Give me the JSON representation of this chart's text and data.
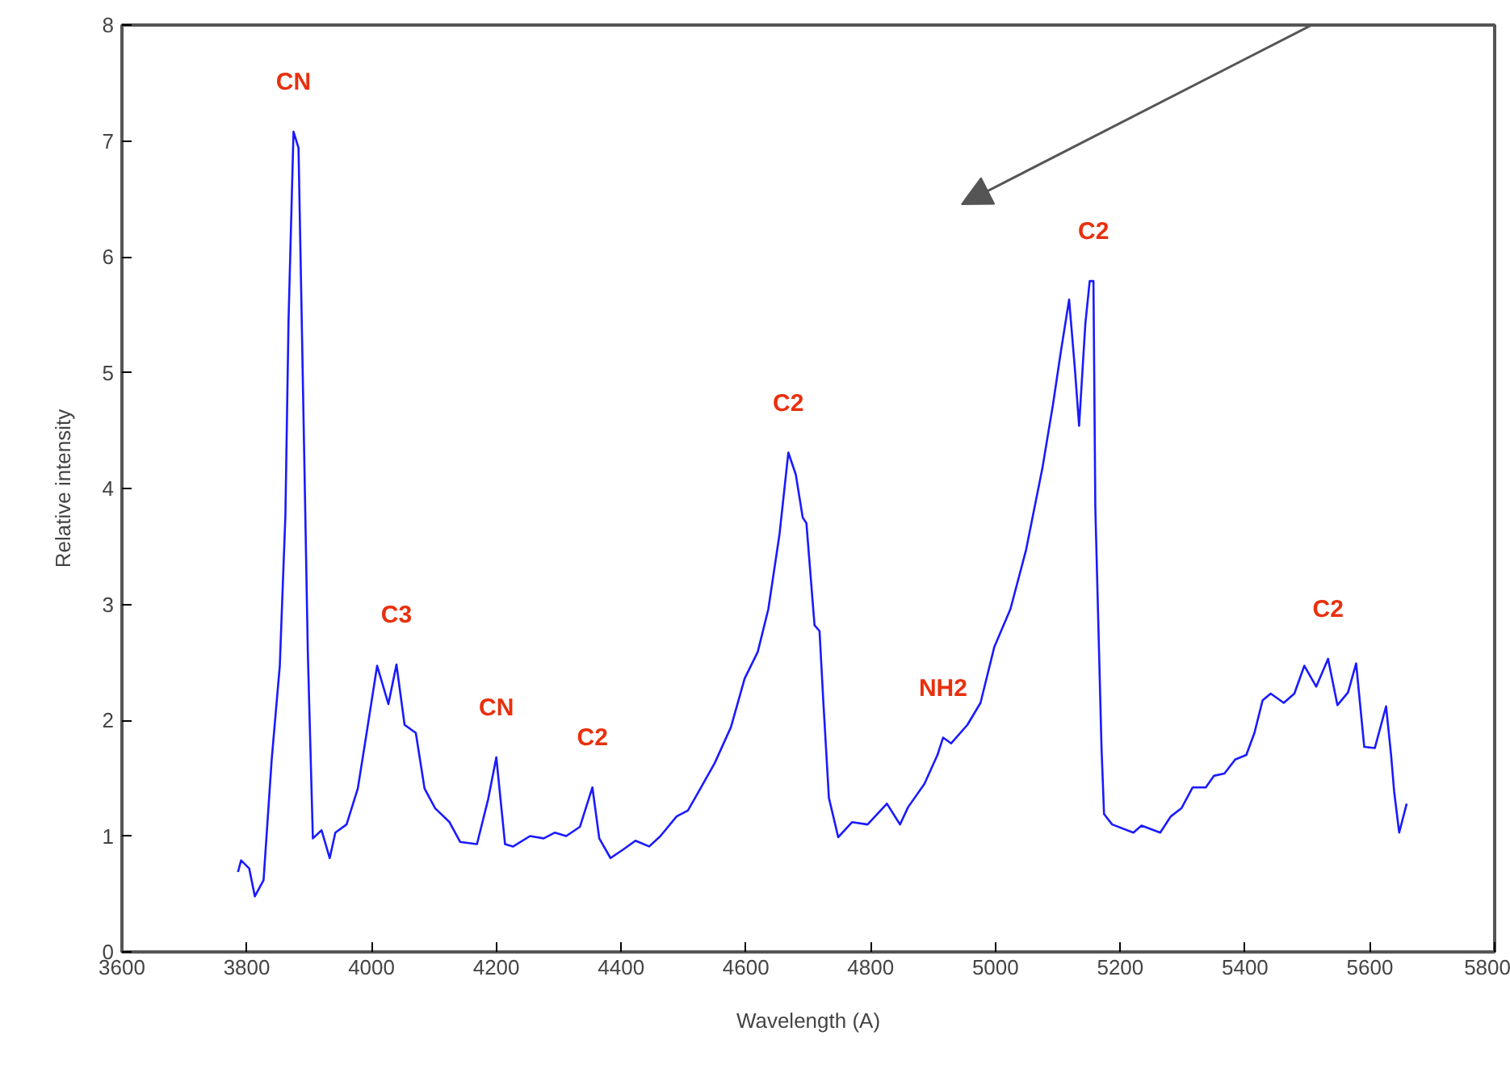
{
  "chart_data": {
    "type": "line",
    "xlabel": "Wavelength (A)",
    "ylabel": "Relative intensity",
    "xlim": [
      3600,
      5800
    ],
    "xticks": [
      3600,
      3800,
      4000,
      4200,
      4400,
      4600,
      4800,
      5000,
      5200,
      5400,
      5600,
      5800
    ],
    "ylim": [
      0,
      8
    ],
    "yticks": [
      0,
      1,
      2,
      3,
      4,
      5,
      6,
      7,
      8
    ],
    "grid": false,
    "marker": "none",
    "line_style": "solid",
    "series": [
      {
        "color": "#1a1aff",
        "x": [
          3786,
          3791,
          3804,
          3813,
          3827,
          3840,
          3853,
          3862,
          3867,
          3875,
          3883,
          3889,
          3898,
          3906,
          3920,
          3933,
          3942,
          3960,
          3978,
          3991,
          4009,
          4027,
          4040,
          4053,
          4071,
          4085,
          4102,
          4125,
          4142,
          4169,
          4187,
          4200,
          4214,
          4227,
          4254,
          4276,
          4294,
          4312,
          4334,
          4354,
          4365,
          4383,
          4405,
          4423,
          4445,
          4463,
          4489,
          4507,
          4524,
          4550,
          4576,
          4598,
          4619,
          4636,
          4654,
          4668,
          4680,
          4691,
          4697,
          4710,
          4718,
          4724,
          4733,
          4748,
          4770,
          4795,
          4826,
          4847,
          4860,
          4886,
          4907,
          4916,
          4929,
          4955,
          4976,
          4998,
          5024,
          5049,
          5075,
          5092,
          5105,
          5118,
          5127,
          5134,
          5144,
          5151,
          5157,
          5160,
          5170,
          5174,
          5187,
          5221,
          5234,
          5264,
          5281,
          5298,
          5316,
          5337,
          5350,
          5367,
          5384,
          5402,
          5415,
          5428,
          5441,
          5462,
          5479,
          5495,
          5514,
          5533,
          5548,
          5565,
          5578,
          5591,
          5608,
          5626,
          5634,
          5639,
          5647,
          5659
        ],
        "values": [
          0.69,
          0.79,
          0.72,
          0.48,
          0.62,
          1.66,
          2.47,
          3.77,
          5.45,
          7.08,
          6.94,
          5.21,
          2.57,
          0.98,
          1.05,
          0.81,
          1.03,
          1.1,
          1.41,
          1.85,
          2.47,
          2.14,
          2.48,
          1.96,
          1.89,
          1.41,
          1.24,
          1.12,
          0.95,
          0.93,
          1.32,
          1.68,
          0.93,
          0.91,
          1.0,
          0.98,
          1.03,
          1.0,
          1.08,
          1.42,
          0.98,
          0.81,
          0.89,
          0.96,
          0.91,
          1.0,
          1.17,
          1.22,
          1.38,
          1.63,
          1.94,
          2.36,
          2.59,
          2.96,
          3.61,
          4.31,
          4.12,
          3.75,
          3.7,
          2.82,
          2.77,
          2.17,
          1.33,
          0.99,
          1.12,
          1.1,
          1.28,
          1.1,
          1.25,
          1.45,
          1.7,
          1.85,
          1.8,
          1.96,
          2.15,
          2.63,
          2.96,
          3.47,
          4.17,
          4.72,
          5.19,
          5.63,
          5.05,
          4.54,
          5.42,
          5.79,
          5.79,
          3.84,
          1.75,
          1.19,
          1.1,
          1.03,
          1.09,
          1.03,
          1.17,
          1.24,
          1.42,
          1.42,
          1.52,
          1.54,
          1.66,
          1.7,
          1.89,
          2.17,
          2.23,
          2.15,
          2.23,
          2.47,
          2.29,
          2.53,
          2.13,
          2.24,
          2.49,
          1.77,
          1.76,
          2.12,
          1.7,
          1.38,
          1.03,
          1.28
        ]
      }
    ],
    "annotations": [
      {
        "text": "CN",
        "x": 3875,
        "y": 7.08
      },
      {
        "text": "C3",
        "x": 4040,
        "y": 2.48
      },
      {
        "text": "CN",
        "x": 4200,
        "y": 1.68
      },
      {
        "text": "C2",
        "x": 4354,
        "y": 1.42
      },
      {
        "text": "C2",
        "x": 4668,
        "y": 4.31
      },
      {
        "text": "NH2",
        "x": 4916,
        "y": 1.85
      },
      {
        "text": "C2",
        "x": 5157,
        "y": 5.79
      },
      {
        "text": "C2",
        "x": 5533,
        "y": 2.53
      }
    ]
  }
}
